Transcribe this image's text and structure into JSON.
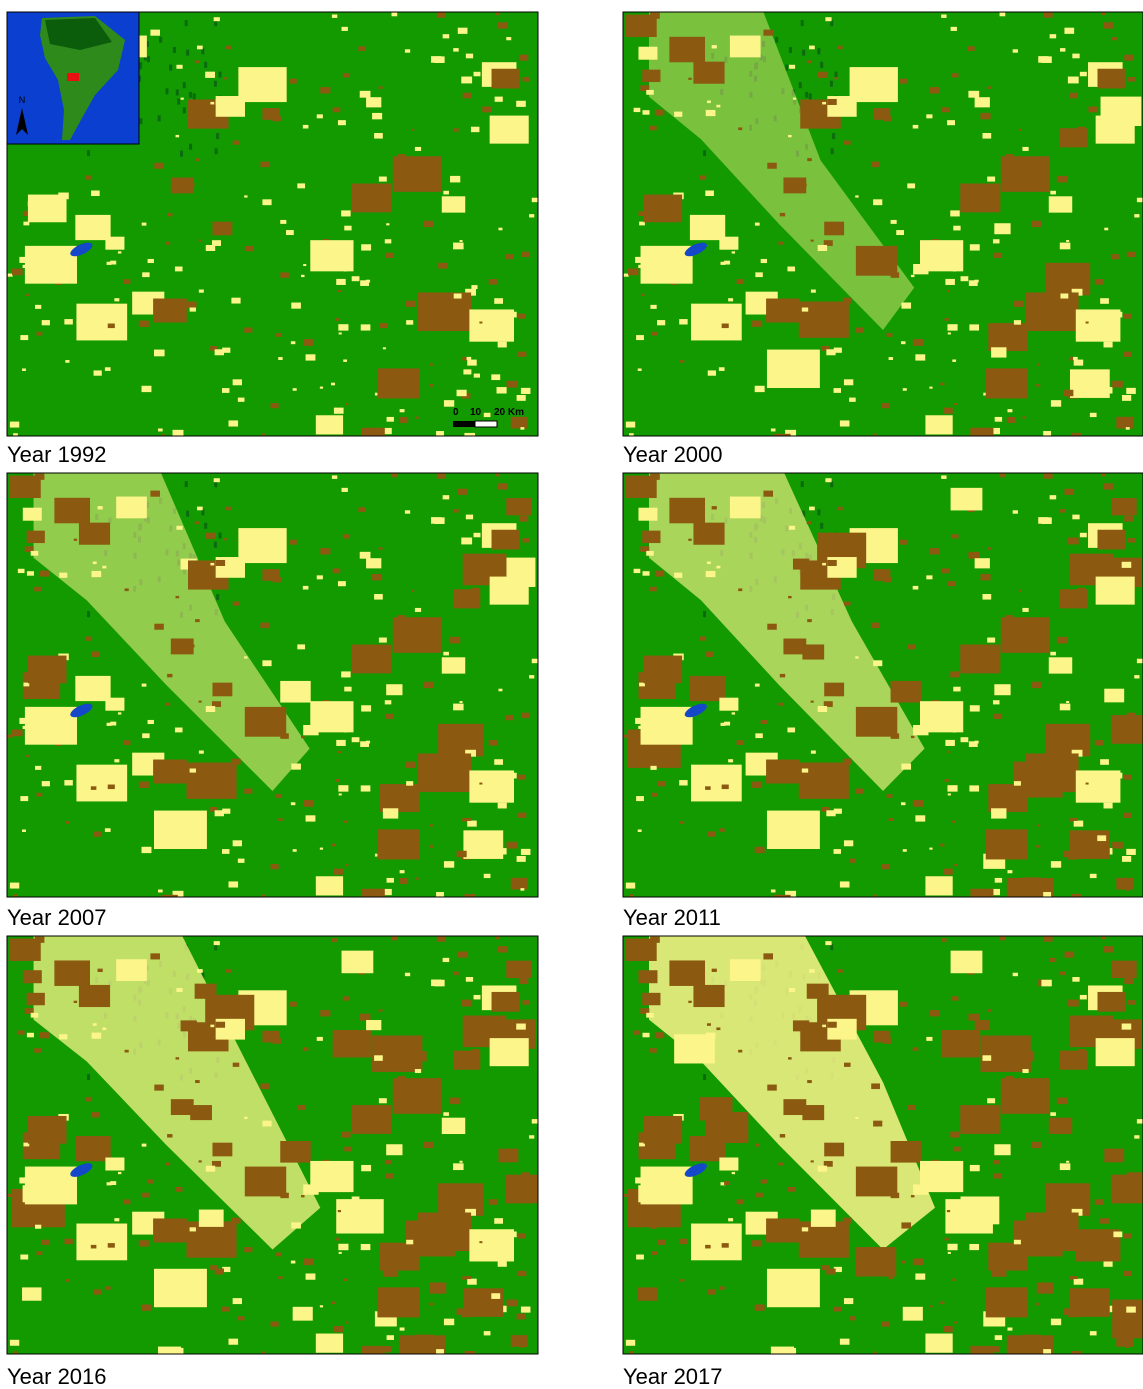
{
  "panels": [
    {
      "label": "Year 1992"
    },
    {
      "label": "Year 2000"
    },
    {
      "label": "Year 2007"
    },
    {
      "label": "Year 2011"
    },
    {
      "label": "Year 2016"
    },
    {
      "label": "Year 2017"
    }
  ],
  "inset": {
    "north_label": "N"
  },
  "scale_bar": {
    "labels": [
      "0",
      "10",
      "20 Km"
    ]
  }
}
